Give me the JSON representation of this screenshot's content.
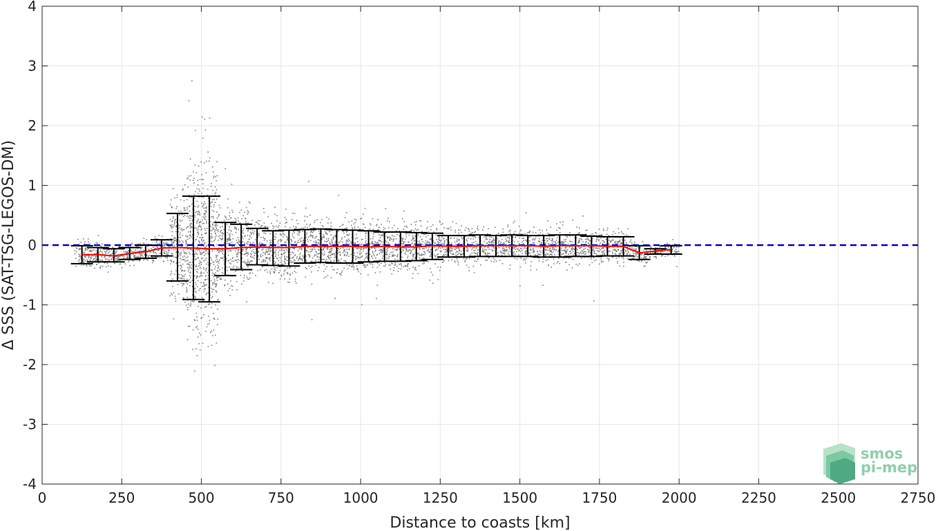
{
  "chart_data": {
    "type": "scatter",
    "xlabel": "Distance to coasts [km]",
    "ylabel": "Δ SSS (SAT-TSG-LEGOS-DM)",
    "xlim": [
      0,
      2750
    ],
    "ylim": [
      -4,
      4
    ],
    "xticks": [
      0,
      250,
      500,
      750,
      1000,
      1250,
      1500,
      1750,
      2000,
      2250,
      2500,
      2750
    ],
    "yticks": [
      -4,
      -3,
      -2,
      -1,
      0,
      1,
      2,
      3,
      4
    ],
    "grid": true,
    "reference_line": {
      "y": 0,
      "color": "#0000dd",
      "style": "dashed"
    },
    "scatter_color": "#808080",
    "mean_line_color": "#ff0000",
    "errorbar_color": "#000000",
    "binned_stats": {
      "x": [
        125,
        175,
        225,
        275,
        325,
        375,
        425,
        475,
        525,
        575,
        625,
        675,
        725,
        775,
        825,
        875,
        925,
        975,
        1025,
        1075,
        1125,
        1175,
        1225,
        1275,
        1325,
        1375,
        1425,
        1475,
        1525,
        1575,
        1625,
        1675,
        1725,
        1775,
        1825,
        1875,
        1925,
        1975
      ],
      "mean": [
        -0.16,
        -0.16,
        -0.18,
        -0.14,
        -0.11,
        -0.05,
        -0.04,
        -0.05,
        -0.06,
        -0.06,
        -0.04,
        -0.03,
        -0.04,
        -0.04,
        -0.02,
        -0.02,
        -0.02,
        -0.02,
        -0.03,
        -0.02,
        -0.03,
        -0.03,
        -0.01,
        -0.02,
        -0.02,
        -0.01,
        -0.01,
        -0.01,
        -0.01,
        -0.02,
        -0.01,
        -0.01,
        -0.01,
        -0.02,
        -0.02,
        -0.13,
        -0.1,
        -0.07
      ],
      "upper": [
        -0.01,
        -0.04,
        -0.06,
        -0.04,
        0.0,
        0.09,
        0.53,
        0.82,
        0.82,
        0.38,
        0.35,
        0.28,
        0.24,
        0.25,
        0.26,
        0.27,
        0.26,
        0.25,
        0.24,
        0.22,
        0.22,
        0.21,
        0.2,
        0.16,
        0.16,
        0.17,
        0.16,
        0.17,
        0.16,
        0.16,
        0.17,
        0.17,
        0.15,
        0.14,
        0.14,
        -0.01,
        -0.06,
        -0.01
      ],
      "lower": [
        -0.31,
        -0.28,
        -0.28,
        -0.24,
        -0.22,
        -0.18,
        -0.6,
        -0.91,
        -0.95,
        -0.51,
        -0.41,
        -0.33,
        -0.34,
        -0.35,
        -0.3,
        -0.29,
        -0.3,
        -0.3,
        -0.28,
        -0.27,
        -0.27,
        -0.26,
        -0.24,
        -0.2,
        -0.2,
        -0.19,
        -0.19,
        -0.19,
        -0.19,
        -0.2,
        -0.2,
        -0.19,
        -0.19,
        -0.18,
        -0.18,
        -0.24,
        -0.15,
        -0.15
      ]
    }
  }
}
